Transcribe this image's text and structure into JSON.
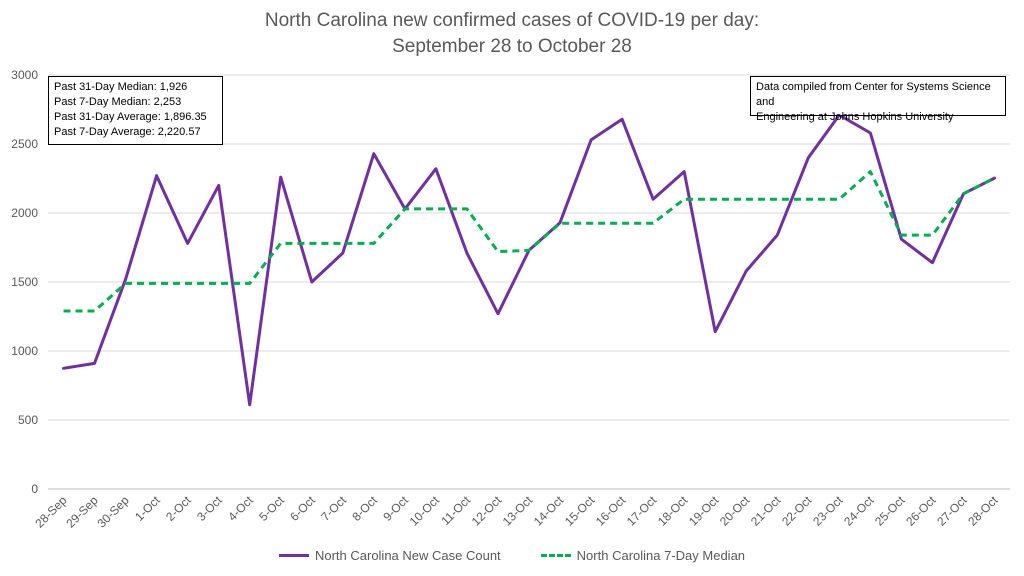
{
  "chart_data": {
    "type": "line",
    "title_line1": "North Carolina new confirmed cases of COVID-19 per day:",
    "title_line2": "September 28 to October 28",
    "categories": [
      "28-Sep",
      "29-Sep",
      "30-Sep",
      "1-Oct",
      "2-Oct",
      "3-Oct",
      "4-Oct",
      "5-Oct",
      "6-Oct",
      "7-Oct",
      "8-Oct",
      "9-Oct",
      "10-Oct",
      "11-Oct",
      "12-Oct",
      "13-Oct",
      "14-Oct",
      "15-Oct",
      "16-Oct",
      "17-Oct",
      "18-Oct",
      "19-Oct",
      "20-Oct",
      "21-Oct",
      "22-Oct",
      "23-Oct",
      "24-Oct",
      "25-Oct",
      "26-Oct",
      "27-Oct",
      "28-Oct"
    ],
    "series": [
      {
        "name": "North Carolina New Case Count",
        "color": "#7030a0",
        "style": "solid",
        "values": [
          875,
          910,
          1520,
          2270,
          1780,
          2200,
          610,
          2260,
          1500,
          1710,
          2430,
          2030,
          2320,
          1710,
          1270,
          1730,
          1930,
          2530,
          2680,
          2100,
          2300,
          1140,
          1580,
          1840,
          2400,
          2710,
          2580,
          1810,
          1640,
          2140,
          2253
        ]
      },
      {
        "name": "North Carolina 7-Day Median",
        "color": "#00b050",
        "style": "dashed",
        "values": [
          1290,
          1290,
          1490,
          1490,
          1490,
          1490,
          1490,
          1780,
          1780,
          1780,
          1780,
          2030,
          2030,
          2030,
          1720,
          1730,
          1926,
          1926,
          1926,
          1926,
          2100,
          2100,
          2100,
          2100,
          2100,
          2100,
          2300,
          1840,
          1840,
          2140,
          2253
        ]
      }
    ],
    "yticks": [
      "0",
      "500",
      "1000",
      "1500",
      "2000",
      "2500",
      "3000"
    ],
    "ylim": [
      0,
      3000
    ],
    "grid": true,
    "legend_position": "bottom"
  },
  "notes": {
    "stats": [
      "Past 31-Day Median: 1,926",
      "Past 7-Day Median: 2,253",
      "Past 31-Day Average: 1,896.35",
      "Past 7-Day Average: 2,220.57"
    ],
    "source_line1": "Data compiled from Center for Systems Science and",
    "source_line2": "Engineering at Johns Hopkins University"
  }
}
